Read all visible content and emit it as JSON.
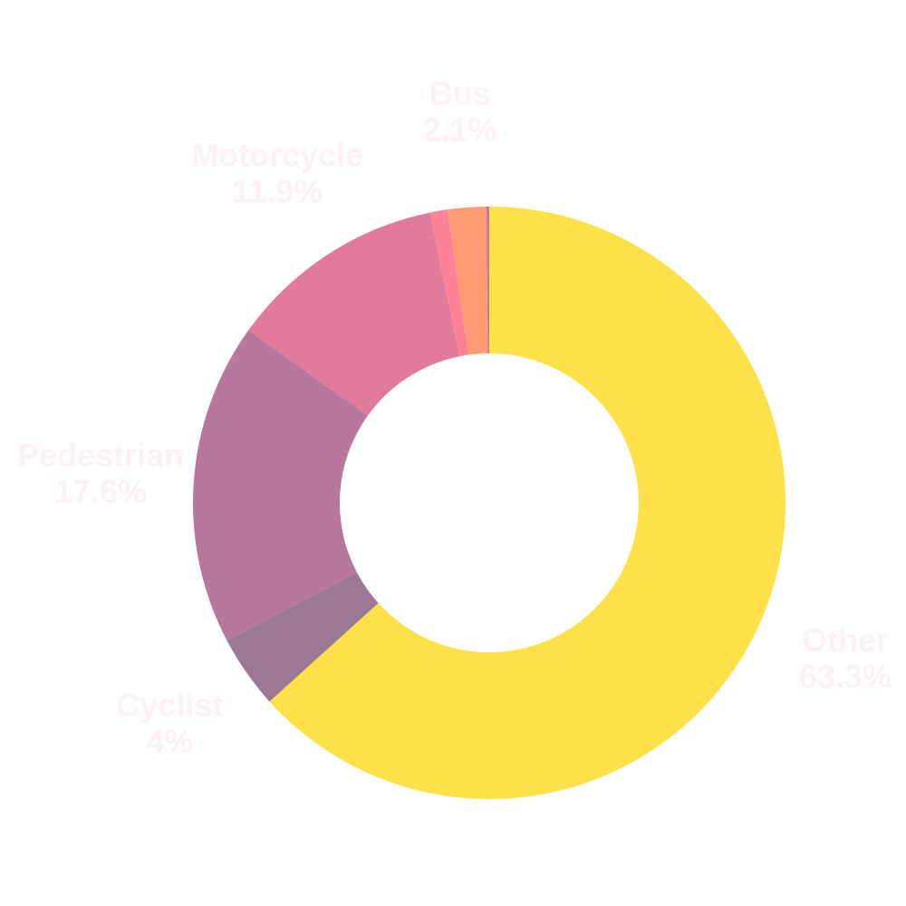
{
  "chart_data": {
    "type": "donut",
    "categories": [
      "Other",
      "Cyclist",
      "Pedestrian",
      "Motorcycle",
      null,
      "Bus",
      null
    ],
    "values": [
      63.3,
      4,
      17.6,
      11.9,
      0.95,
      2.1,
      0.15
    ],
    "value_labels": [
      "63.3%",
      "4%",
      "17.6%",
      "11.9%",
      null,
      "2.1%",
      null
    ],
    "colors": [
      "#fee148",
      "#9b7896",
      "#b8779d",
      "#e27a9c",
      "#fd8197",
      "#fe9a74",
      "#c47aa0"
    ]
  }
}
